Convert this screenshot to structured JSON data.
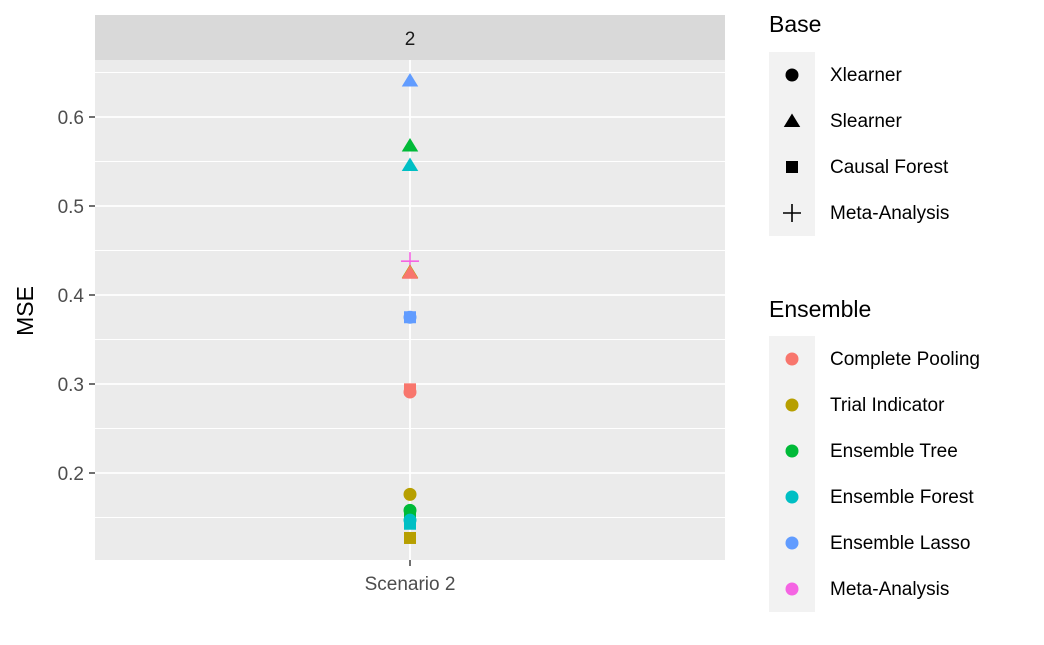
{
  "chart_data": {
    "type": "scatter",
    "facet_label": "2",
    "categories": [
      "Scenario 2"
    ],
    "xlabel": "",
    "ylabel": "MSE",
    "ylim": [
      0.1,
      0.7
    ],
    "y_ticks": [
      0.2,
      0.3,
      0.4,
      0.5,
      0.6
    ],
    "y_tick_labels": [
      "0.2",
      "0.3",
      "0.4",
      "0.5",
      "0.6"
    ],
    "legend_base": {
      "title": "Base",
      "entries": [
        {
          "label": "Xlearner",
          "shape": "circle"
        },
        {
          "label": "Slearner",
          "shape": "triangle"
        },
        {
          "label": "Causal Forest",
          "shape": "square"
        },
        {
          "label": "Meta-Analysis",
          "shape": "plus"
        }
      ]
    },
    "legend_ensemble": {
      "title": "Ensemble",
      "entries": [
        {
          "label": "Complete Pooling",
          "color": "#F8766D"
        },
        {
          "label": "Trial Indicator",
          "color": "#B79F00"
        },
        {
          "label": "Ensemble Tree",
          "color": "#00BA38"
        },
        {
          "label": "Ensemble Forest",
          "color": "#00BFC4"
        },
        {
          "label": "Ensemble Lasso",
          "color": "#619CFF"
        },
        {
          "label": "Meta-Analysis",
          "color": "#F564E3"
        }
      ]
    },
    "points": [
      {
        "category": "Scenario 2",
        "base": "Slearner",
        "ensemble": "Ensemble Lasso",
        "mse": 0.641
      },
      {
        "category": "Scenario 2",
        "base": "Slearner",
        "ensemble": "Ensemble Tree",
        "mse": 0.568
      },
      {
        "category": "Scenario 2",
        "base": "Slearner",
        "ensemble": "Ensemble Forest",
        "mse": 0.546
      },
      {
        "category": "Scenario 2",
        "base": "Meta-Analysis",
        "ensemble": "Meta-Analysis",
        "mse": 0.438
      },
      {
        "category": "Scenario 2",
        "base": "Slearner",
        "ensemble": "Trial Indicator",
        "mse": 0.426
      },
      {
        "category": "Scenario 2",
        "base": "Slearner",
        "ensemble": "Complete Pooling",
        "mse": 0.425
      },
      {
        "category": "Scenario 2",
        "base": "Xlearner",
        "ensemble": "Ensemble Lasso",
        "mse": 0.375
      },
      {
        "category": "Scenario 2",
        "base": "Causal Forest",
        "ensemble": "Ensemble Lasso",
        "mse": 0.375
      },
      {
        "category": "Scenario 2",
        "base": "Causal Forest",
        "ensemble": "Complete Pooling",
        "mse": 0.294
      },
      {
        "category": "Scenario 2",
        "base": "Xlearner",
        "ensemble": "Complete Pooling",
        "mse": 0.291
      },
      {
        "category": "Scenario 2",
        "base": "Xlearner",
        "ensemble": "Trial Indicator",
        "mse": 0.176
      },
      {
        "category": "Scenario 2",
        "base": "Xlearner",
        "ensemble": "Ensemble Tree",
        "mse": 0.158
      },
      {
        "category": "Scenario 2",
        "base": "Causal Forest",
        "ensemble": "Ensemble Tree",
        "mse": 0.154
      },
      {
        "category": "Scenario 2",
        "base": "Xlearner",
        "ensemble": "Ensemble Forest",
        "mse": 0.147
      },
      {
        "category": "Scenario 2",
        "base": "Causal Forest",
        "ensemble": "Ensemble Forest",
        "mse": 0.143
      },
      {
        "category": "Scenario 2",
        "base": "Causal Forest",
        "ensemble": "Trial Indicator",
        "mse": 0.127
      }
    ]
  }
}
